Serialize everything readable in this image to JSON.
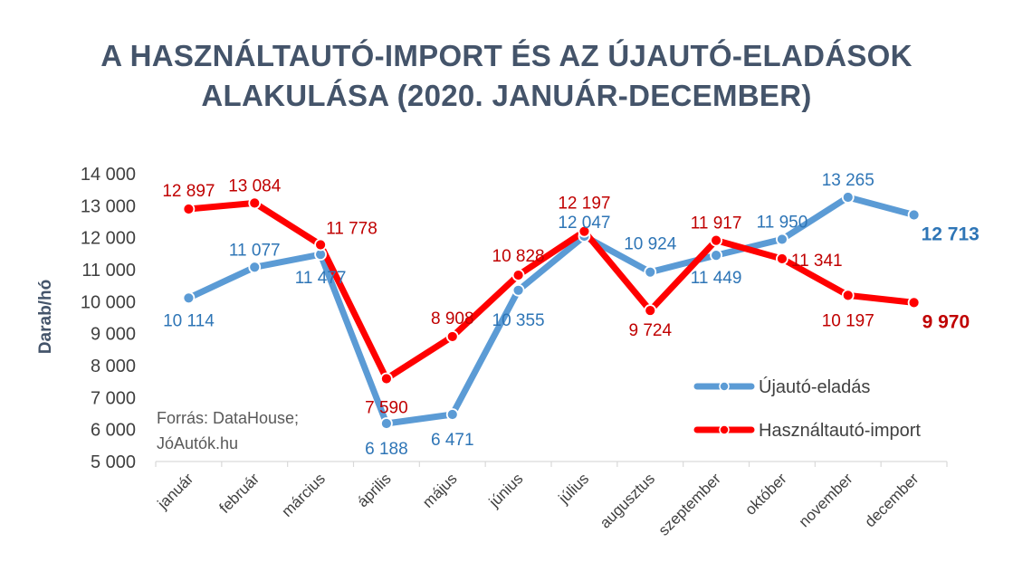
{
  "title_line1": "A HASZNÁLTAUTÓ-IMPORT ÉS AZ ÚJAUTÓ-ELADÁSOK",
  "title_line2": "ALAKULÁSA (2020. JANUÁR-DECEMBER)",
  "source_line1": "Forrás: DataHouse;",
  "source_line2": "JóAutók.hu",
  "colors": {
    "new": "#5b9bd5",
    "new_label": "#2e75b6",
    "used": "#ff0000",
    "used_label": "#c00000"
  },
  "chart_data": {
    "type": "line",
    "ylabel": "Darab/hó",
    "xlabel": "",
    "ylim": [
      5000,
      14000
    ],
    "yticks": [
      5000,
      6000,
      7000,
      8000,
      9000,
      10000,
      11000,
      12000,
      13000,
      14000
    ],
    "ytick_labels": [
      "5 000",
      "6 000",
      "7 000",
      "8 000",
      "9 000",
      "10 000",
      "11 000",
      "12 000",
      "13 000",
      "14 000"
    ],
    "grid": false,
    "legend_position": "bottom-right",
    "categories": [
      "január",
      "február",
      "március",
      "április",
      "május",
      "június",
      "július",
      "augusztus",
      "szeptember",
      "október",
      "november",
      "december"
    ],
    "series": [
      {
        "name": "Újautó-eladás",
        "values": [
          10114,
          11077,
          11477,
          6188,
          6471,
          10355,
          12047,
          10924,
          11449,
          11950,
          13265,
          12713
        ],
        "labels": [
          "10 114",
          "11 077",
          "11 477",
          "6 188",
          "6 471",
          "10 355",
          "12 047",
          "10 924",
          "11 449",
          "11 950",
          "13 265",
          "12 713"
        ]
      },
      {
        "name": "Használtautó-import",
        "values": [
          12897,
          13084,
          11778,
          7590,
          8908,
          10828,
          12197,
          9724,
          11917,
          11341,
          10197,
          9970
        ],
        "labels": [
          "12 897",
          "13 084",
          "11 778",
          "7 590",
          "8 908",
          "10 828",
          "12 197",
          "9 724",
          "11 917",
          "11 341",
          "10 197",
          "9 970"
        ]
      }
    ]
  }
}
